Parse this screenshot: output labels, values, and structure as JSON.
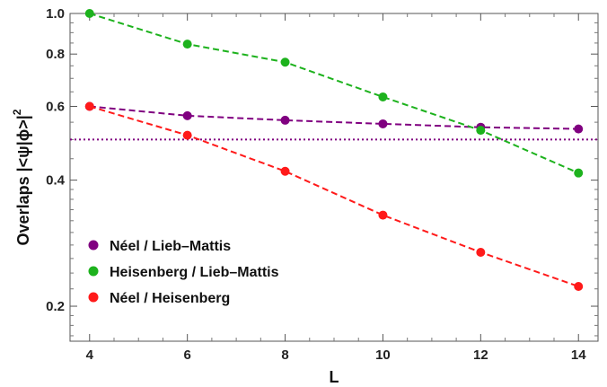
{
  "chart_data": {
    "type": "line",
    "title": "",
    "xlabel": "L",
    "ylabel": "Overlaps |<ψ|ϕ>|²",
    "ylabel_parts": {
      "main": "Overlaps |<ψ|ϕ>|",
      "sup": "2"
    },
    "y_scale": "log",
    "xlim": [
      3.6,
      14.4
    ],
    "ylim": [
      0.165,
      1.0
    ],
    "x_ticks": [
      4,
      6,
      8,
      10,
      12,
      14
    ],
    "x_tick_labels": [
      "4",
      "6",
      "8",
      "10",
      "12",
      "14"
    ],
    "y_ticks": [
      0.2,
      0.4,
      0.6,
      0.8,
      1.0
    ],
    "y_tick_labels": [
      "0.2",
      "0.4",
      "0.6",
      "0.8",
      "1.0"
    ],
    "grid": false,
    "legend_position": "lower-left",
    "x": [
      4,
      6,
      8,
      10,
      12,
      14
    ],
    "series": [
      {
        "name": "Néel / Lieb–Mattis",
        "color": "#800080",
        "values": [
          0.6,
          0.57,
          0.556,
          0.545,
          0.535,
          0.53
        ]
      },
      {
        "name": "Heisenberg / Lieb–Mattis",
        "color": "#1db21d",
        "values": [
          1.0,
          0.845,
          0.765,
          0.632,
          0.526,
          0.416
        ]
      },
      {
        "name": "Néel / Heisenberg",
        "color": "#ff1a1a",
        "values": [
          0.6,
          0.512,
          0.42,
          0.33,
          0.269,
          0.223
        ]
      }
    ],
    "reference_line": {
      "y": 0.5,
      "color": "#800080",
      "style": "dotted"
    }
  }
}
